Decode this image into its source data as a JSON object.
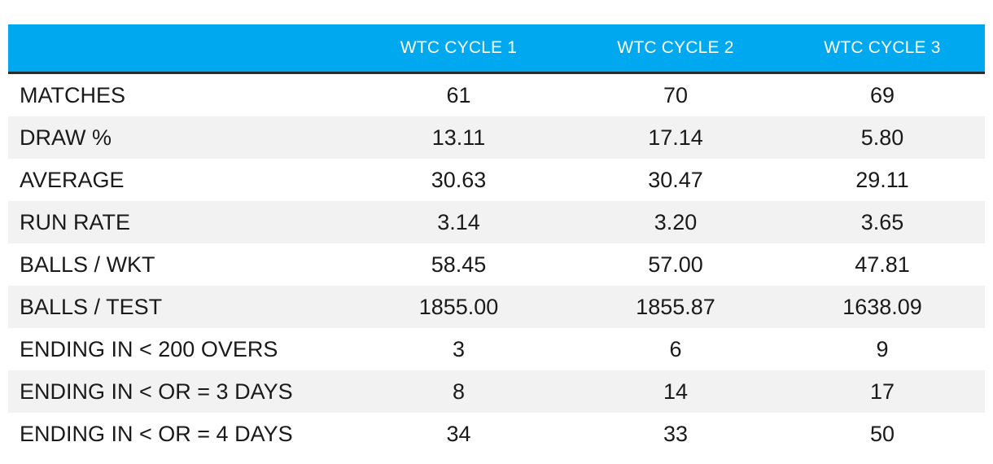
{
  "chart_data": {
    "type": "table",
    "columns": [
      "",
      "WTC CYCLE 1",
      "WTC CYCLE 2",
      "WTC CYCLE 3"
    ],
    "rows": [
      {
        "label": "MATCHES",
        "values": [
          "61",
          "70",
          "69"
        ]
      },
      {
        "label": "DRAW %",
        "values": [
          "13.11",
          "17.14",
          "5.80"
        ]
      },
      {
        "label": "AVERAGE",
        "values": [
          "30.63",
          "30.47",
          "29.11"
        ]
      },
      {
        "label": "RUN RATE",
        "values": [
          "3.14",
          "3.20",
          "3.65"
        ]
      },
      {
        "label": "BALLS / WKT",
        "values": [
          "58.45",
          "57.00",
          "47.81"
        ]
      },
      {
        "label": "BALLS / TEST",
        "values": [
          "1855.00",
          "1855.87",
          "1638.09"
        ]
      },
      {
        "label": "ENDING IN < 200 OVERS",
        "values": [
          "3",
          "6",
          "9"
        ]
      },
      {
        "label": "ENDING IN < OR = 3 DAYS",
        "values": [
          "8",
          "14",
          "17"
        ]
      },
      {
        "label": "ENDING IN < OR = 4 DAYS",
        "values": [
          "34",
          "33",
          "50"
        ]
      }
    ],
    "colors": {
      "header_bg": "#00a9ef",
      "header_text": "#ffffff",
      "header_border": "#2b2b2b",
      "stripe": "#f2f2f2",
      "text": "#1a1a1a"
    }
  }
}
